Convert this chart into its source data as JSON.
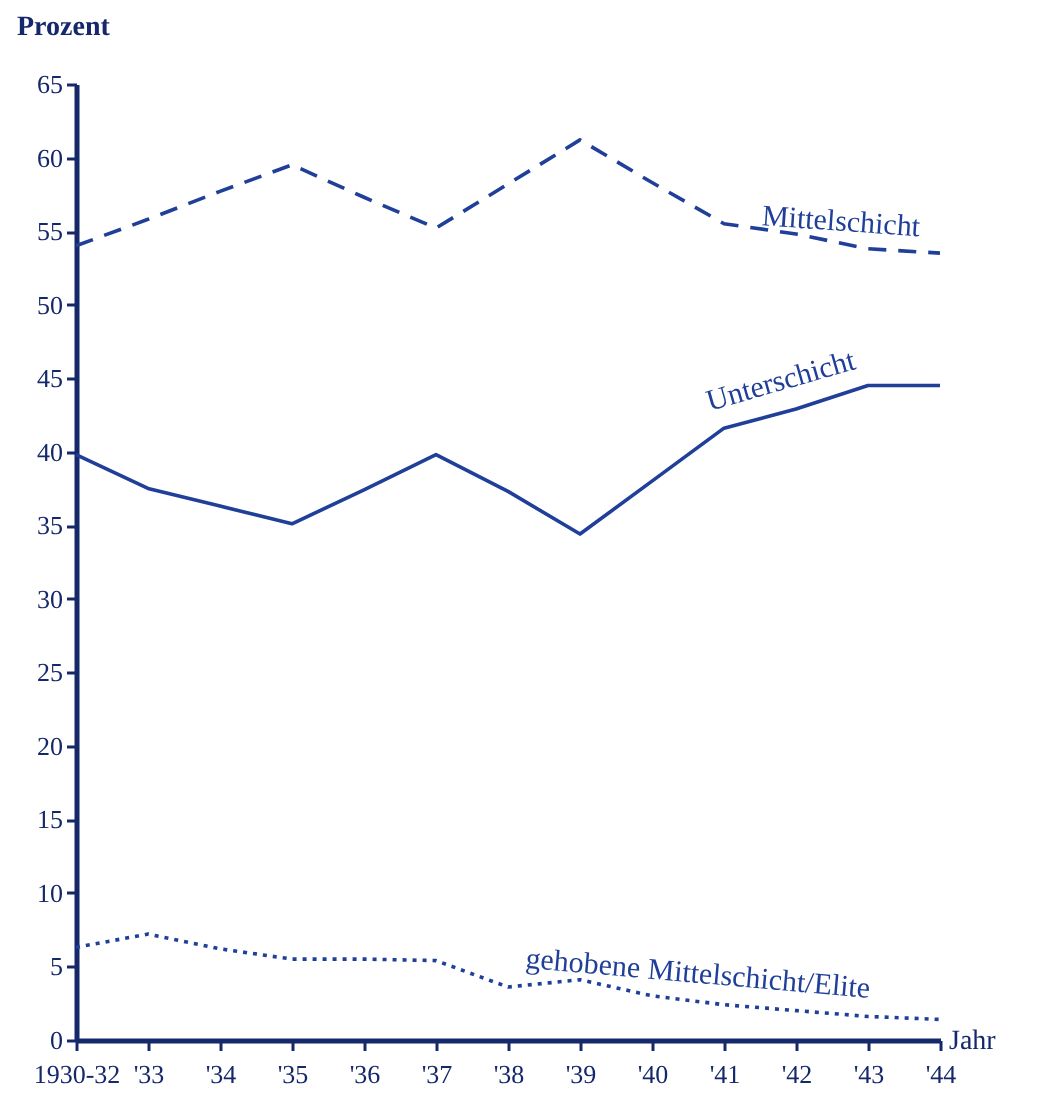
{
  "chart_data": {
    "type": "line",
    "ylabel": "Prozent",
    "xlabel": "Jahr",
    "categories": [
      "1930-32",
      "'33",
      "'34",
      "'35",
      "'36",
      "'37",
      "'38",
      "'39",
      "'40",
      "'41",
      "'42",
      "'43",
      "'44"
    ],
    "ylim": [
      0,
      65
    ],
    "yticks": [
      0,
      5,
      10,
      15,
      20,
      25,
      30,
      35,
      40,
      45,
      50,
      55,
      60,
      65
    ],
    "grid": false,
    "legend": false,
    "marker": "none",
    "series": [
      {
        "name": "Mittelschicht",
        "color": "#1f3f99",
        "line_style": "dashed",
        "values": [
          54,
          55.8,
          57.7,
          59.5,
          57.3,
          55.2,
          58.2,
          61.2,
          58.3,
          55.5,
          54.8,
          53.8,
          53.5
        ]
      },
      {
        "name": "Unterschicht",
        "color": "#1f3f99",
        "line_style": "solid",
        "values": [
          39.8,
          37.5,
          36.3,
          35.1,
          37.4,
          39.8,
          37.3,
          34.4,
          38,
          41.6,
          42.9,
          44.5,
          44.5
        ]
      },
      {
        "name": "gehobene Mittelschicht/Elite",
        "color": "#1f3f99",
        "line_style": "dotted",
        "values": [
          6.3,
          7.2,
          6.2,
          5.5,
          5.5,
          5.4,
          3.6,
          4.1,
          3.0,
          2.4,
          2.0,
          1.6,
          1.4
        ]
      }
    ]
  }
}
